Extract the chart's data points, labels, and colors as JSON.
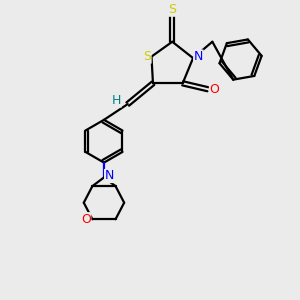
{
  "bg_color": "#ebebeb",
  "atom_colors": {
    "S": "#cccc00",
    "N": "#0000ff",
    "O": "#ff0000",
    "C": "#000000",
    "H": "#008080"
  },
  "bond_color": "#000000",
  "figsize": [
    3.0,
    3.0
  ],
  "dpi": 100
}
